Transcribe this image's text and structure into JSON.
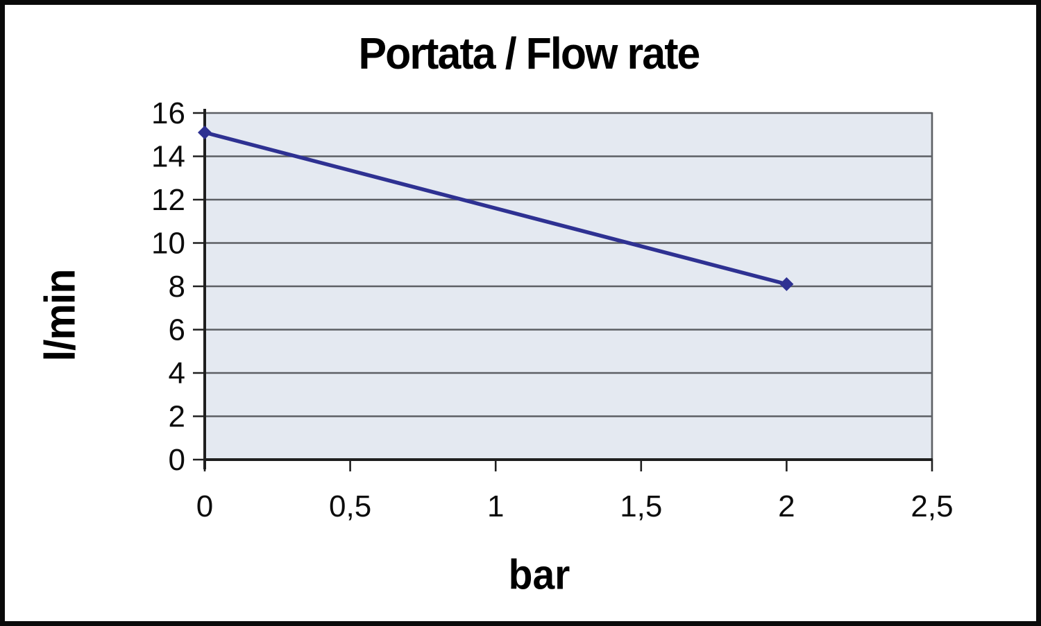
{
  "chart_data": {
    "type": "line",
    "title": "Portata / Flow rate",
    "xlabel": "bar",
    "ylabel": "l/min",
    "xlim": [
      0,
      2.5
    ],
    "ylim": [
      0,
      16
    ],
    "x_tick_values": [
      0,
      0.5,
      1,
      1.5,
      2,
      2.5
    ],
    "x_tick_labels": [
      "0",
      "0,5",
      "1",
      "1,5",
      "2",
      "2,5"
    ],
    "y_tick_values": [
      0,
      2,
      4,
      6,
      8,
      10,
      12,
      14,
      16
    ],
    "y_tick_labels": [
      "0",
      "2",
      "4",
      "6",
      "8",
      "10",
      "12",
      "14",
      "16"
    ],
    "grid": "horizontal",
    "legend": "none",
    "series": [
      {
        "name": "Portata / Flow rate",
        "marker": "diamond",
        "color": "#2e3192",
        "points": [
          {
            "x": 0,
            "y": 15.1
          },
          {
            "x": 2,
            "y": 8.1
          }
        ]
      }
    ],
    "colors": {
      "plot_background": "#e4e9f1",
      "gridline": "#5c5f64",
      "axis": "#1f1f1f",
      "tick_text": "#0c0c0c",
      "title_text": "#000000",
      "frame_border": "#0a0a0a",
      "page_background": "#ffffff"
    }
  }
}
